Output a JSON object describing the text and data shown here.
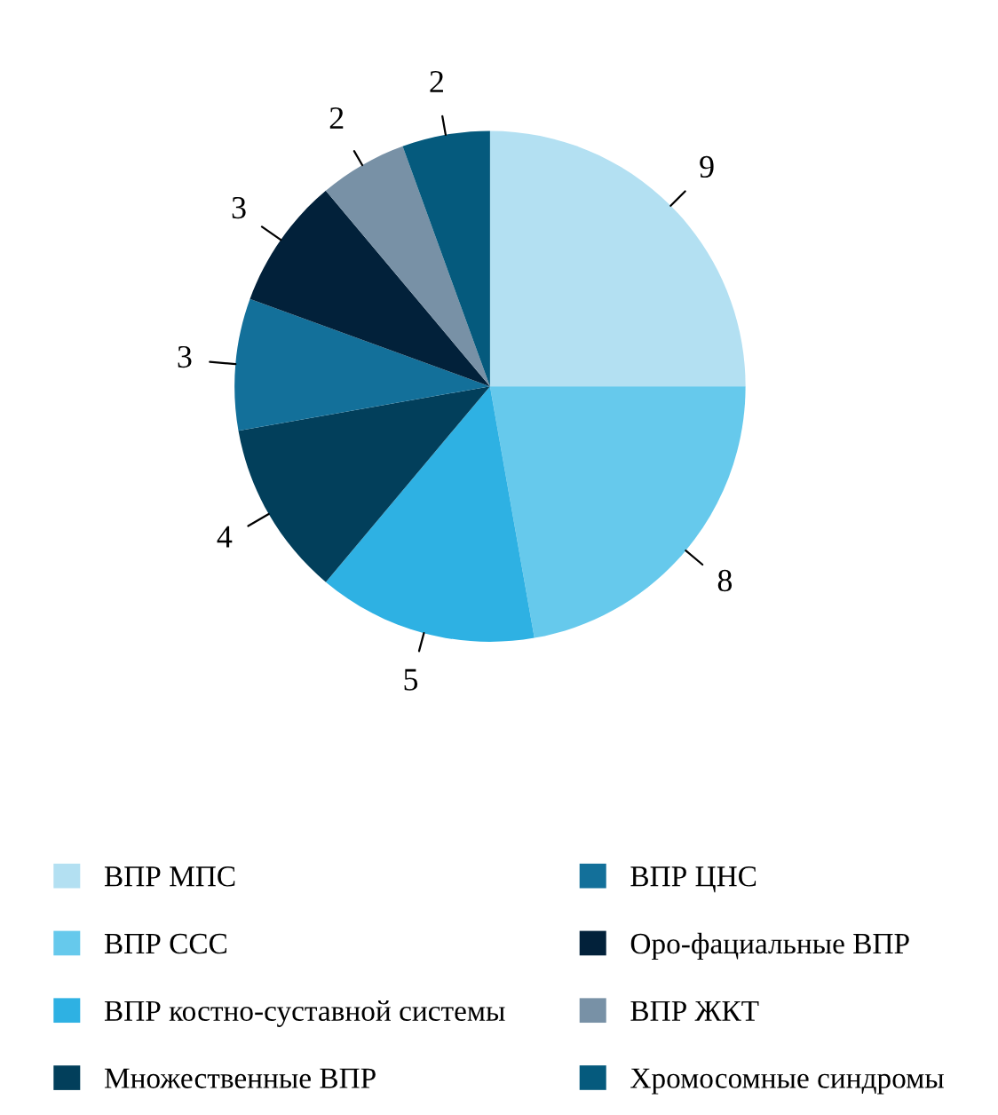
{
  "chart_data": {
    "type": "pie",
    "categories": [
      "ВПР МПС",
      "ВПР ССС",
      "ВПР костно-суставной системы",
      "Множественные ВПР",
      "ВПР ЦНС",
      "Оро-фациальные ВПР",
      "ВПР ЖКТ",
      "Хромосомные синдромы"
    ],
    "values": [
      9,
      8,
      5,
      4,
      3,
      3,
      2,
      2
    ],
    "colors": [
      "#b3e0f2",
      "#66c9ec",
      "#2eb1e3",
      "#023f5b",
      "#13709a",
      "#02213a",
      "#7891a6",
      "#055a7d"
    ],
    "data_labels": true,
    "legend": "bottom"
  }
}
